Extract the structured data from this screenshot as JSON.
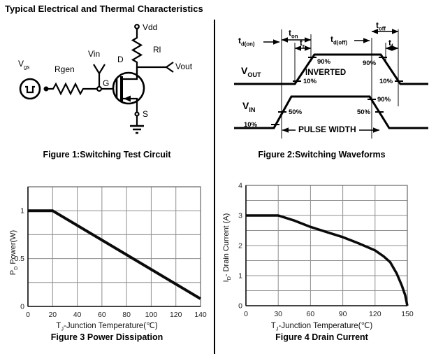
{
  "page": {
    "title": "Typical Electrical and Thermal Characteristics"
  },
  "figure1": {
    "caption": "Figure 1:Switching Test Circuit",
    "labels": {
      "vgs_main": "V",
      "vgs_sub": "gs",
      "rgen": "Rgen",
      "vin": "Vin",
      "gate": "G",
      "drain": "D",
      "source": "S",
      "vdd": "Vdd",
      "rl": "Rl",
      "vout": "Vout"
    }
  },
  "figure2": {
    "caption": "Figure 2:Switching Waveforms",
    "labels": {
      "vout_main": "V",
      "vout_sub": "OUT",
      "vin_main": "V",
      "vin_sub": "IN",
      "inverted": "INVERTED",
      "pulse_width": "PULSE WIDTH",
      "t_main": "t",
      "td_on_sub": "d(on)",
      "ton_sub": "on",
      "tr_sub": "r",
      "td_off_sub": "d(off)",
      "toff_sub": "off",
      "tf_sub": "f",
      "pct90": "90%",
      "pct50": "50%",
      "pct10": "10%"
    }
  },
  "chart_data": [
    {
      "id": "power-dissipation",
      "type": "line",
      "title": "Figure 3 Power Dissipation",
      "xlabel": "TJ-Junction Temperature(℃)",
      "xlabel_parts": {
        "main": "T",
        "sub": "J",
        "rest": "-Junction Temperature(℃)"
      },
      "ylabel": "PD Power(W)",
      "ylabel_parts": {
        "main": "P",
        "sub": "D",
        "rest": "  Power(W)"
      },
      "xlim": [
        0,
        140
      ],
      "ylim": [
        0,
        1.25
      ],
      "xticks": [
        0,
        20,
        40,
        60,
        80,
        100,
        120,
        140
      ],
      "yticks": [
        0,
        0.5,
        1
      ],
      "xgrid_step": 20,
      "ygrid_step": 0.25,
      "grid": true,
      "legend": false,
      "points": [
        [
          0,
          1
        ],
        [
          20,
          1
        ],
        [
          140,
          0.08
        ]
      ]
    },
    {
      "id": "drain-current",
      "type": "line",
      "title": "Figure 4 Drain Current",
      "xlabel": "TJ-Junction Temperature(℃)",
      "xlabel_parts": {
        "main": "T",
        "sub": "J",
        "rest": "-Junction Temperature(℃)"
      },
      "ylabel": "ID- Drain Current (A)",
      "ylabel_parts": {
        "main": "I",
        "sub": "D",
        "rest": "- Drain Current (A)"
      },
      "xlim": [
        0,
        150
      ],
      "ylim": [
        0,
        4
      ],
      "xticks": [
        0,
        30,
        60,
        90,
        120,
        150
      ],
      "yticks": [
        0,
        1,
        2,
        3,
        4
      ],
      "xgrid_step": 30,
      "ygrid_step": 0.5,
      "grid": true,
      "legend": false,
      "points": [
        [
          0,
          3
        ],
        [
          30,
          3
        ],
        [
          45,
          2.83
        ],
        [
          60,
          2.62
        ],
        [
          75,
          2.45
        ],
        [
          90,
          2.28
        ],
        [
          105,
          2.07
        ],
        [
          120,
          1.84
        ],
        [
          128,
          1.64
        ],
        [
          134,
          1.45
        ],
        [
          140,
          1.08
        ],
        [
          145,
          0.66
        ],
        [
          148,
          0.35
        ],
        [
          150,
          0
        ]
      ]
    }
  ]
}
